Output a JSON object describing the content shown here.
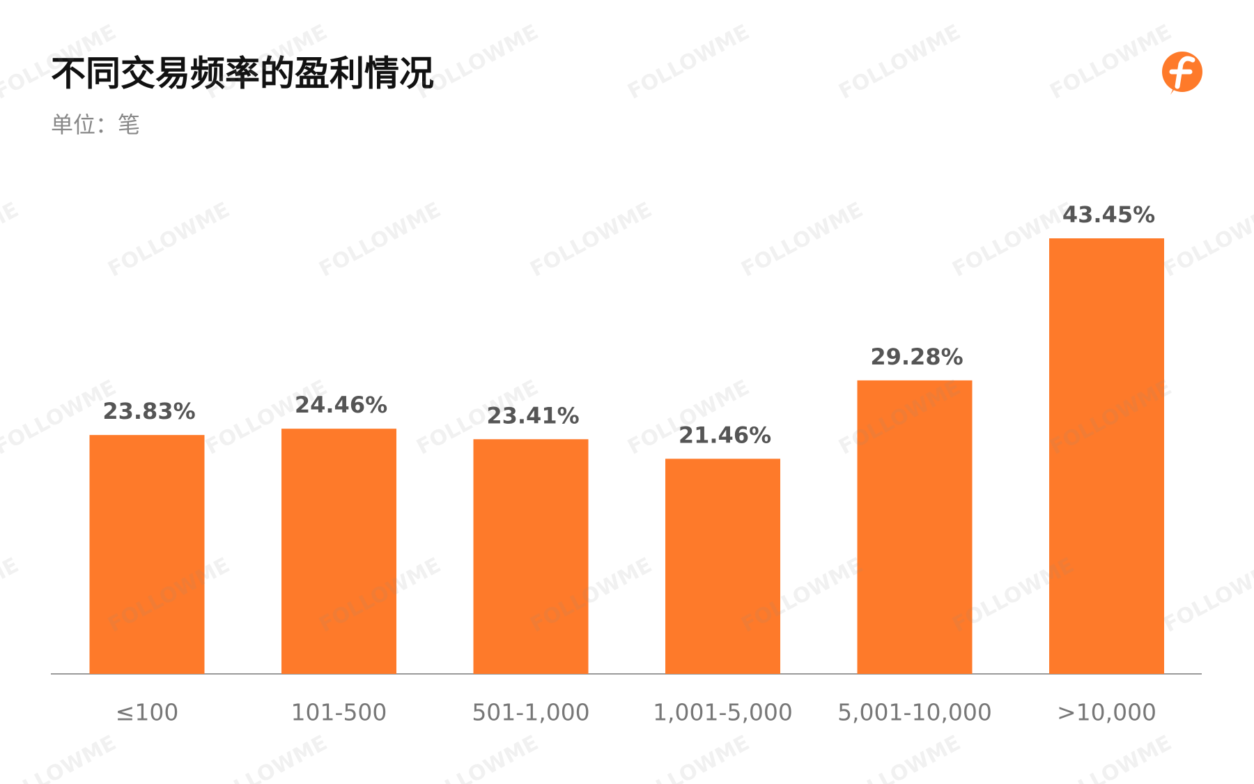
{
  "chart_data": {
    "type": "bar",
    "title": "不同交易频率的盈利情况",
    "subtitle": "单位：笔",
    "categories": [
      "≤100",
      "101-500",
      "501-1,000",
      "1,001-5,000",
      "5,001-10,000",
      ">10,000"
    ],
    "values": [
      23.83,
      24.46,
      23.41,
      21.46,
      29.28,
      43.45
    ],
    "value_labels": [
      "23.83%",
      "24.46%",
      "23.41%",
      "21.46%",
      "29.28%",
      "43.45%"
    ],
    "color": "#fe7a2a",
    "grid": false
  },
  "watermark": "FOLLOWME"
}
